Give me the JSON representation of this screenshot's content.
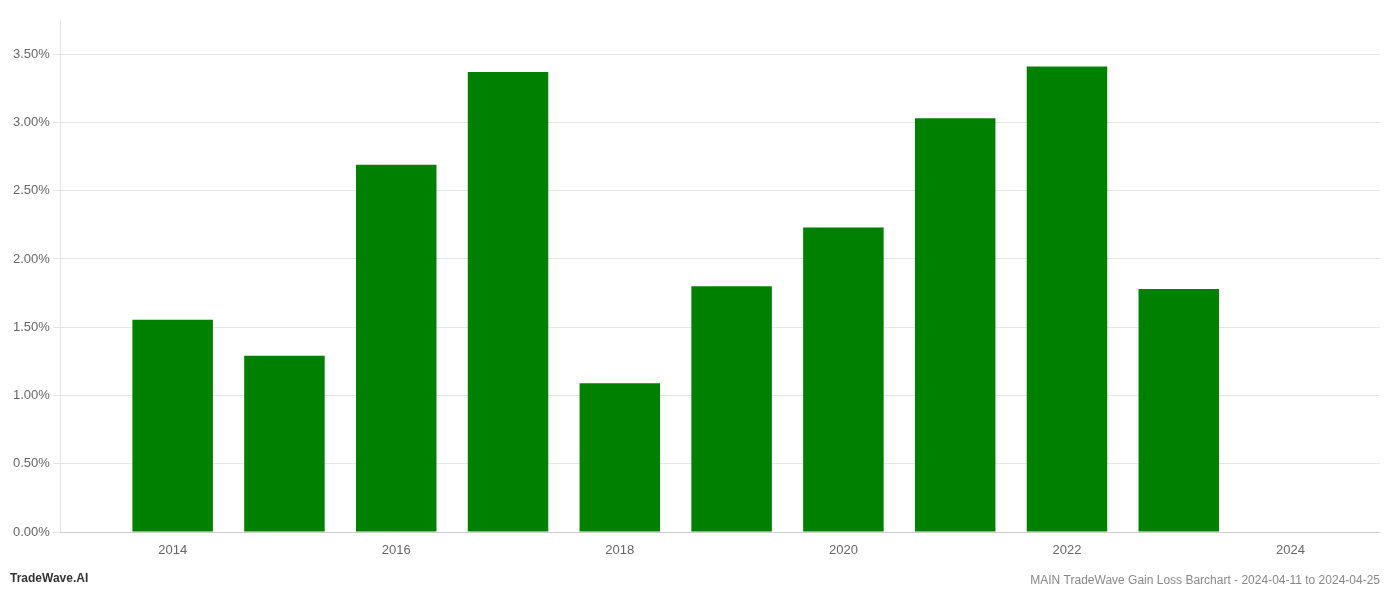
{
  "chart_data": {
    "type": "bar",
    "title": "MAIN TradeWave Gain Loss Barchart - 2024-04-11 to 2024-04-25",
    "annotations": [
      "TradeWave.AI"
    ],
    "x": [
      2014,
      2015,
      2016,
      2017,
      2018,
      2019,
      2020,
      2021,
      2022,
      2023
    ],
    "values": [
      0.01554,
      0.0129,
      0.0269,
      0.0337,
      0.0109,
      0.018,
      0.0223,
      0.0303,
      0.0341,
      0.0178
    ],
    "color": "#008000",
    "xlim": [
      2013.0,
      2024.8
    ],
    "xticks": [
      2014,
      2016,
      2018,
      2020,
      2022,
      2024
    ],
    "ylim": [
      0,
      0.0375
    ],
    "yticks": [
      {
        "value": 0.0,
        "label": "0.00%"
      },
      {
        "value": 0.005,
        "label": "0.50%"
      },
      {
        "value": 0.01,
        "label": "1.00%"
      },
      {
        "value": 0.015,
        "label": "1.50%"
      },
      {
        "value": 0.02,
        "label": "2.00%"
      },
      {
        "value": 0.025,
        "label": "2.50%"
      },
      {
        "value": 0.03,
        "label": "3.00%"
      },
      {
        "value": 0.035,
        "label": "3.50%"
      }
    ],
    "grid": true
  }
}
